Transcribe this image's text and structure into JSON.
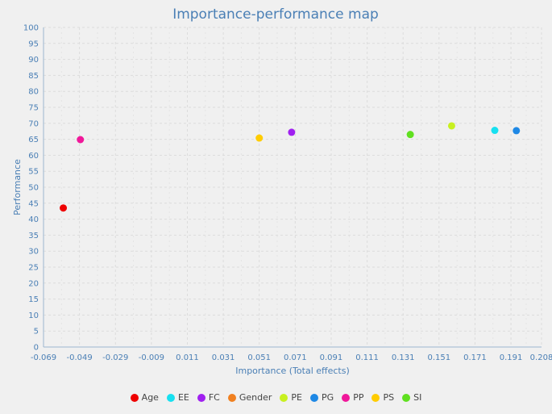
{
  "chart_data": {
    "type": "scatter",
    "title": "Importance-performance map",
    "xlabel": "Importance (Total effects)",
    "ylabel": "Performance",
    "xlim": [
      -0.069,
      0.208
    ],
    "ylim": [
      0,
      100
    ],
    "x_ticks": [
      "-0.069",
      "-0.049",
      "-0.029",
      "-0.009",
      "0.011",
      "0.031",
      "0.051",
      "0.071",
      "0.091",
      "0.111",
      "0.131",
      "0.151",
      "0.171",
      "0.191",
      "0.208"
    ],
    "y_ticks": [
      "0",
      "5",
      "10",
      "15",
      "20",
      "25",
      "30",
      "35",
      "40",
      "45",
      "50",
      "55",
      "60",
      "65",
      "70",
      "75",
      "80",
      "85",
      "90",
      "95",
      "100"
    ],
    "grid": true,
    "legend_position": "bottom",
    "series": [
      {
        "name": "Age",
        "color": "#ee0000",
        "x": -0.058,
        "y": 43.5
      },
      {
        "name": "EE",
        "color": "#17e0f0",
        "x": 0.182,
        "y": 67.8
      },
      {
        "name": "FC",
        "color": "#a020f0",
        "x": 0.069,
        "y": 67.2
      },
      {
        "name": "Gender",
        "color": "#f08020",
        "x": null,
        "y": null
      },
      {
        "name": "PE",
        "color": "#c8f020",
        "x": 0.158,
        "y": 69.2
      },
      {
        "name": "PG",
        "color": "#1e88e5",
        "x": 0.194,
        "y": 67.7
      },
      {
        "name": "PP",
        "color": "#f0189a",
        "x": -0.0485,
        "y": 64.9
      },
      {
        "name": "PS",
        "color": "#ffcc00",
        "x": 0.051,
        "y": 65.4
      },
      {
        "name": "SI",
        "color": "#60e020",
        "x": 0.135,
        "y": 66.5
      }
    ]
  }
}
